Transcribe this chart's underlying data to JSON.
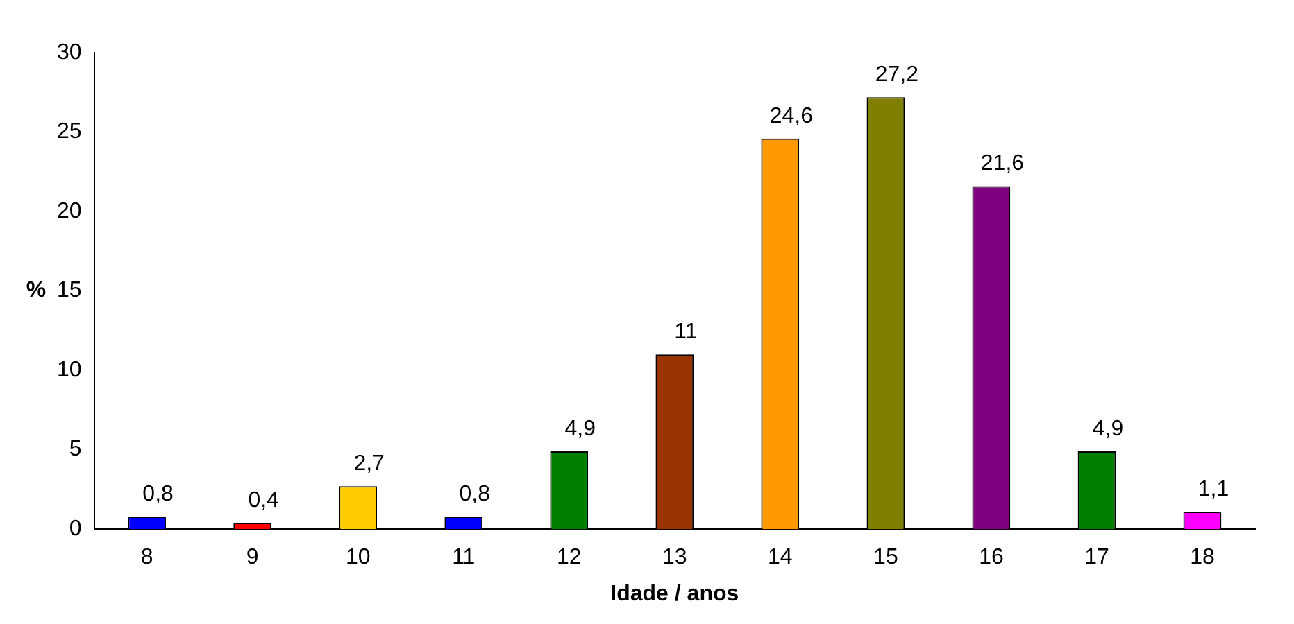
{
  "chart_data": {
    "type": "bar",
    "xlabel": "Idade / anos",
    "ylabel": "%",
    "categories": [
      "8",
      "9",
      "10",
      "11",
      "12",
      "13",
      "14",
      "15",
      "16",
      "17",
      "18"
    ],
    "values": [
      0.8,
      0.4,
      2.7,
      0.8,
      4.9,
      11,
      24.6,
      27.2,
      21.6,
      4.9,
      1.1
    ],
    "value_labels": [
      "0,8",
      "0,4",
      "2,7",
      "0,8",
      "4,9",
      "11",
      "24,6",
      "27,2",
      "21,6",
      "4,9",
      "1,1"
    ],
    "colors": [
      "#0000ff",
      "#ff0000",
      "#ffcc00",
      "#0000ff",
      "#008000",
      "#993300",
      "#ff9900",
      "#808000",
      "#800080",
      "#008000",
      "#ff00ff"
    ],
    "ylim": [
      0,
      30
    ],
    "yticks": [
      0,
      5,
      10,
      15,
      20,
      25,
      30
    ],
    "grid": false,
    "legend": false
  }
}
